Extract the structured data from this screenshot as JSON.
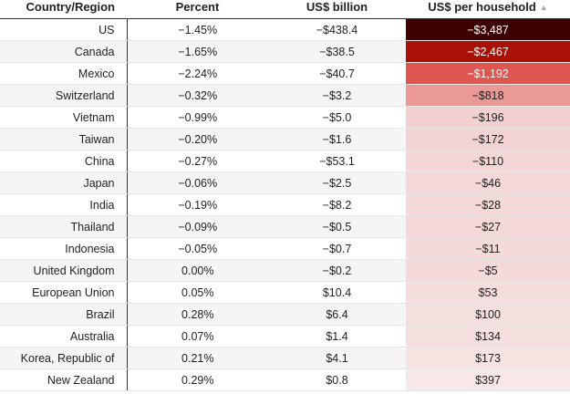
{
  "headers": [
    "Country/Region",
    "Percent",
    "US$ billion",
    "US$ per household"
  ],
  "sort_icon": "sort-ascending-icon",
  "rows": [
    {
      "country": "US",
      "percent": "−1.45%",
      "billion": "−$438.4",
      "household": "−$3,487",
      "bg": "#3f0000",
      "fg": "#ffffff"
    },
    {
      "country": "Canada",
      "percent": "−1.65%",
      "billion": "−$38.5",
      "household": "−$2,467",
      "bg": "#aa1106",
      "fg": "#ffffff"
    },
    {
      "country": "Mexico",
      "percent": "−2.24%",
      "billion": "−$40.7",
      "household": "−$1,192",
      "bg": "#df5550",
      "fg": "#ffffff"
    },
    {
      "country": "Switzerland",
      "percent": "−0.32%",
      "billion": "−$3.2",
      "household": "−$818",
      "bg": "#eb9995",
      "fg": "#222222"
    },
    {
      "country": "Vietnam",
      "percent": "−0.99%",
      "billion": "−$5.0",
      "household": "−$196",
      "bg": "#f2d1d0",
      "fg": "#222222"
    },
    {
      "country": "Taiwan",
      "percent": "−0.20%",
      "billion": "−$1.6",
      "household": "−$172",
      "bg": "#f2d3d2",
      "fg": "#222222"
    },
    {
      "country": "China",
      "percent": "−0.27%",
      "billion": "−$53.1",
      "household": "−$110",
      "bg": "#f3d6d5",
      "fg": "#222222"
    },
    {
      "country": "Japan",
      "percent": "−0.06%",
      "billion": "−$2.5",
      "household": "−$46",
      "bg": "#f3d8d7",
      "fg": "#222222"
    },
    {
      "country": "India",
      "percent": "−0.19%",
      "billion": "−$8.2",
      "household": "−$28",
      "bg": "#f4d9d8",
      "fg": "#222222"
    },
    {
      "country": "Thailand",
      "percent": "−0.09%",
      "billion": "−$0.5",
      "household": "−$27",
      "bg": "#f4d9d8",
      "fg": "#222222"
    },
    {
      "country": "Indonesia",
      "percent": "−0.05%",
      "billion": "−$0.7",
      "household": "−$11",
      "bg": "#f4dad9",
      "fg": "#222222"
    },
    {
      "country": "United Kingdom",
      "percent": "0.00%",
      "billion": "−$0.2",
      "household": "−$5",
      "bg": "#f4dbda",
      "fg": "#222222"
    },
    {
      "country": "European Union",
      "percent": "0.05%",
      "billion": "$10.4",
      "household": "$53",
      "bg": "#f5dddc",
      "fg": "#222222"
    },
    {
      "country": "Brazil",
      "percent": "0.28%",
      "billion": "$6.4",
      "household": "$100",
      "bg": "#f5dfde",
      "fg": "#222222"
    },
    {
      "country": "Australia",
      "percent": "0.07%",
      "billion": "$1.4",
      "household": "$134",
      "bg": "#f6e0df",
      "fg": "#222222"
    },
    {
      "country": "Korea, Republic of",
      "percent": "0.21%",
      "billion": "$4.1",
      "household": "$173",
      "bg": "#f6e3e2",
      "fg": "#222222"
    },
    {
      "country": "New Zealand",
      "percent": "0.29%",
      "billion": "$0.8",
      "household": "$397",
      "bg": "#f7e7e6",
      "fg": "#222222"
    }
  ]
}
